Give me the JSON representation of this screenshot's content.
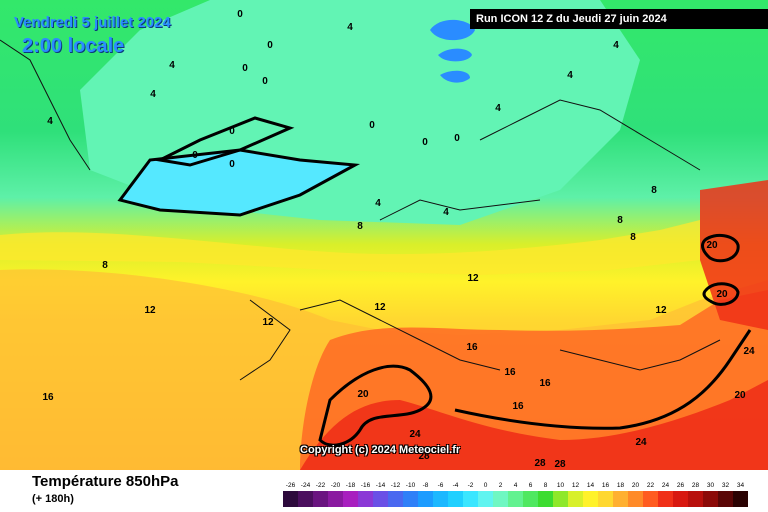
{
  "header": {
    "date_label": "Vendredi 5 juillet 2024",
    "time_label": "2:00 locale",
    "run_label": "Run ICON 12 Z du Jeudi 27 juin 2024"
  },
  "map": {
    "copyright": "Copyright (c) 2024 Meteociel.fr",
    "isotherm_labels": [
      {
        "text": "4"
      },
      {
        "text": "0"
      },
      {
        "text": "0"
      },
      {
        "text": "0"
      },
      {
        "text": "0"
      },
      {
        "text": "4"
      },
      {
        "text": "4"
      },
      {
        "text": "4"
      },
      {
        "text": "0"
      },
      {
        "text": "4"
      },
      {
        "text": "4"
      },
      {
        "text": "4"
      },
      {
        "text": "0"
      },
      {
        "text": "0"
      },
      {
        "text": "0"
      },
      {
        "text": "0"
      },
      {
        "text": "0"
      },
      {
        "text": "4"
      },
      {
        "text": "4"
      },
      {
        "text": "8"
      },
      {
        "text": "8"
      },
      {
        "text": "8"
      },
      {
        "text": "8"
      },
      {
        "text": "8"
      },
      {
        "text": "12"
      },
      {
        "text": "12"
      },
      {
        "text": "12"
      },
      {
        "text": "12"
      },
      {
        "text": "12"
      },
      {
        "text": "16"
      },
      {
        "text": "16"
      },
      {
        "text": "16"
      },
      {
        "text": "16"
      },
      {
        "text": "16"
      },
      {
        "text": "20"
      },
      {
        "text": "20"
      },
      {
        "text": "20"
      },
      {
        "text": "20"
      },
      {
        "text": "24"
      },
      {
        "text": "24"
      },
      {
        "text": "24"
      },
      {
        "text": "28"
      },
      {
        "text": "28"
      },
      {
        "text": "28"
      }
    ]
  },
  "footer": {
    "variable_title": "Température 850hPa",
    "forecast_step": "(+ 180h)"
  },
  "legend": {
    "ticks": [
      "-26",
      "-24",
      "-22",
      "-20",
      "-18",
      "-16",
      "-14",
      "-12",
      "-10",
      "-8",
      "-6",
      "-4",
      "-2",
      "0",
      "2",
      "4",
      "6",
      "8",
      "10",
      "12",
      "14",
      "16",
      "18",
      "20",
      "22",
      "24",
      "26",
      "28",
      "30",
      "32",
      "34"
    ],
    "colors": [
      "#2d0a3c",
      "#4b0f5e",
      "#6a1480",
      "#8a1aa0",
      "#a81fbf",
      "#8b38d6",
      "#6a50e6",
      "#4a68f0",
      "#2f80f8",
      "#1c9cff",
      "#1cb8ff",
      "#20d0ff",
      "#3ae6ff",
      "#60f4f0",
      "#6ff7c2",
      "#62f290",
      "#4fe860",
      "#3cdc30",
      "#8ee82a",
      "#d8f02a",
      "#fff22a",
      "#ffd830",
      "#ffb030",
      "#ff8a28",
      "#ff5c20",
      "#f03018",
      "#d81810",
      "#b8100c",
      "#8c0a08",
      "#5a0606",
      "#2a0202"
    ]
  }
}
